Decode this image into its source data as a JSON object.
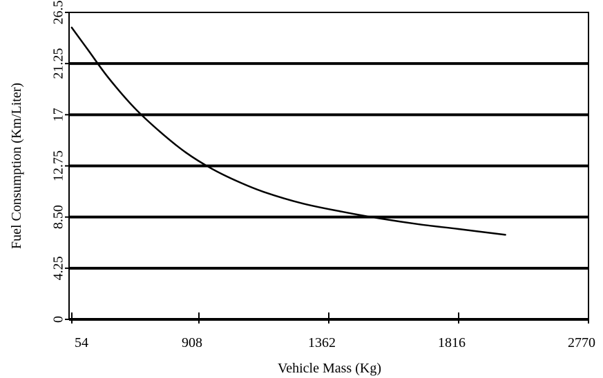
{
  "chart_data": {
    "type": "line",
    "title": "",
    "xlabel": "Vehicle Mass (Kg)",
    "ylabel": "Fuel Consumption (Km/Liter)",
    "x_ticks": [
      "54",
      "908",
      "1362",
      "1816",
      "2770"
    ],
    "y_ticks": [
      "0",
      "4.25",
      "8.50",
      "12.75",
      "17",
      "21.25",
      "26.5"
    ],
    "xlim": [
      0,
      4
    ],
    "ylim": [
      0,
      26.5
    ],
    "grid": "horizontal",
    "series": [
      {
        "values": [
          {
            "x": 0.02,
            "y": 25.2
          },
          {
            "x": 0.15,
            "y": 23.2
          },
          {
            "x": 0.3,
            "y": 20.9
          },
          {
            "x": 0.5,
            "y": 18.3
          },
          {
            "x": 0.7,
            "y": 16.2
          },
          {
            "x": 0.9,
            "y": 14.4
          },
          {
            "x": 1.1,
            "y": 13.0
          },
          {
            "x": 1.3,
            "y": 11.9
          },
          {
            "x": 1.5,
            "y": 11.0
          },
          {
            "x": 1.8,
            "y": 10.0
          },
          {
            "x": 2.1,
            "y": 9.3
          },
          {
            "x": 2.4,
            "y": 8.7
          },
          {
            "x": 2.7,
            "y": 8.2
          },
          {
            "x": 3.0,
            "y": 7.8
          },
          {
            "x": 3.36,
            "y": 7.3
          }
        ]
      }
    ],
    "colors": {
      "line": "#000000",
      "grid": "#000000",
      "background": "#ffffff"
    }
  }
}
